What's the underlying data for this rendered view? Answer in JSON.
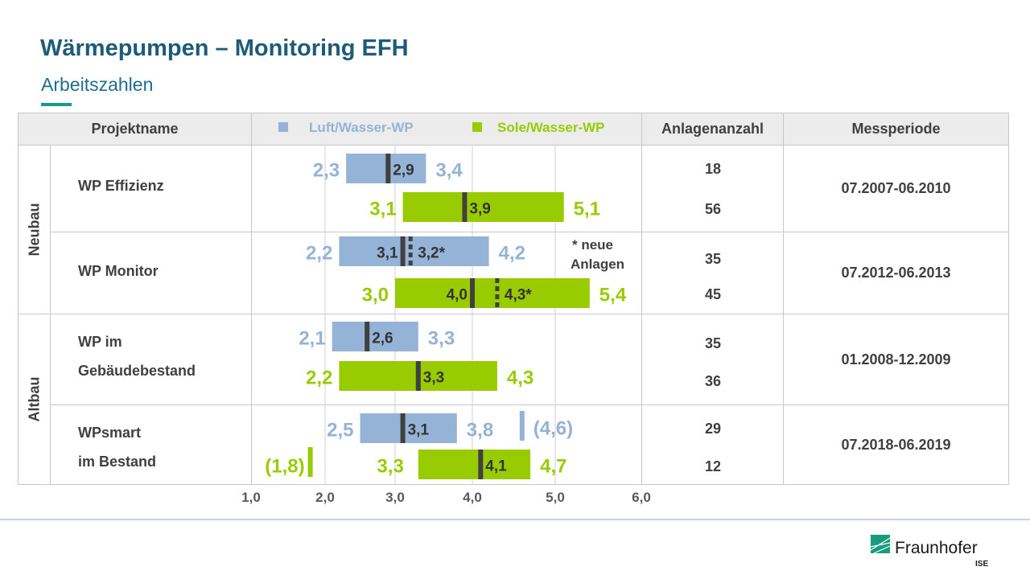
{
  "header": {
    "title": "Wärmepumpen – Monitoring EFH",
    "subtitle": "Arbeitszahlen"
  },
  "table": {
    "col_project": "Projektname",
    "col_count": "Anlagenanzahl",
    "col_period": "Messperiode",
    "groups": [
      "Neubau",
      "Altbau"
    ],
    "projects": [
      {
        "name_lines": [
          "WP Effizienz"
        ],
        "counts": [
          "18",
          "56"
        ],
        "period": "07.2007-06.2010"
      },
      {
        "name_lines": [
          "WP Monitor"
        ],
        "counts": [
          "35",
          "45"
        ],
        "period": "07.2012-06.2013"
      },
      {
        "name_lines": [
          "WP im",
          "Gebäudebestand"
        ],
        "counts": [
          "35",
          "36"
        ],
        "period": "01.2008-12.2009"
      },
      {
        "name_lines": [
          "WPsmart",
          "im Bestand"
        ],
        "counts": [
          "29",
          "12"
        ],
        "period": "07.2018-06.2019"
      }
    ],
    "note_lines": [
      "* neue",
      "Anlagen"
    ]
  },
  "chart_data": {
    "type": "bar",
    "orientation": "horizontal range bars with median",
    "xlim": [
      1.0,
      6.0
    ],
    "xticks": [
      "1,0",
      "2,0",
      "3,0",
      "4,0",
      "5,0",
      "6,0"
    ],
    "grid": true,
    "legend_placement": "top",
    "colors": {
      "Luft/Wasser-WP": "#95b3d7",
      "Sole/Wasser-WP": "#99cc00",
      "median": "#404040"
    },
    "series": [
      {
        "name": "Luft/Wasser-WP"
      },
      {
        "name": "Sole/Wasser-WP"
      }
    ],
    "rows": [
      {
        "project": "WP Effizienz",
        "series": "Luft/Wasser-WP",
        "min": 2.3,
        "median": 2.9,
        "max": 3.4,
        "labels": {
          "min": "2,3",
          "median": "2,9",
          "max": "3,4"
        }
      },
      {
        "project": "WP Effizienz",
        "series": "Sole/Wasser-WP",
        "min": 3.1,
        "median": 3.9,
        "max": 5.1,
        "labels": {
          "min": "3,1",
          "median": "3,9",
          "max": "5,1"
        }
      },
      {
        "project": "WP Monitor",
        "series": "Luft/Wasser-WP",
        "min": 2.2,
        "median": 3.1,
        "median_new": 3.2,
        "max": 4.2,
        "labels": {
          "min": "2,2",
          "median": "3,1",
          "median_new": "3,2*",
          "max": "4,2"
        }
      },
      {
        "project": "WP Monitor",
        "series": "Sole/Wasser-WP",
        "min": 3.0,
        "median": 4.0,
        "median_new": 4.3,
        "max": 5.4,
        "labels": {
          "min": "3,0",
          "median": "4,0",
          "median_new": "4,3*",
          "max": "5,4"
        }
      },
      {
        "project": "WP im Gebäudebestand",
        "series": "Luft/Wasser-WP",
        "min": 2.1,
        "median": 2.6,
        "max": 3.3,
        "labels": {
          "min": "2,1",
          "median": "2,6",
          "max": "3,3"
        }
      },
      {
        "project": "WP im Gebäudebestand",
        "series": "Sole/Wasser-WP",
        "min": 2.2,
        "median": 3.3,
        "max": 4.3,
        "labels": {
          "min": "2,2",
          "median": "3,3",
          "max": "4,3"
        }
      },
      {
        "project": "WPsmart im Bestand",
        "series": "Luft/Wasser-WP",
        "min": 2.5,
        "median": 3.1,
        "max": 3.8,
        "outlier": 4.6,
        "labels": {
          "min": "2,5",
          "median": "3,1",
          "max": "3,8",
          "outlier": "(4,6)"
        }
      },
      {
        "project": "WPsmart im Bestand",
        "series": "Sole/Wasser-WP",
        "min": 3.3,
        "median": 4.1,
        "max": 4.7,
        "outlier": 1.8,
        "labels": {
          "min": "3,3",
          "median": "4,1",
          "max": "4,7",
          "outlier": "(1,8)"
        }
      }
    ]
  },
  "logo": {
    "name": "Fraunhofer",
    "sub": "ISE",
    "color": "#179c7d"
  }
}
